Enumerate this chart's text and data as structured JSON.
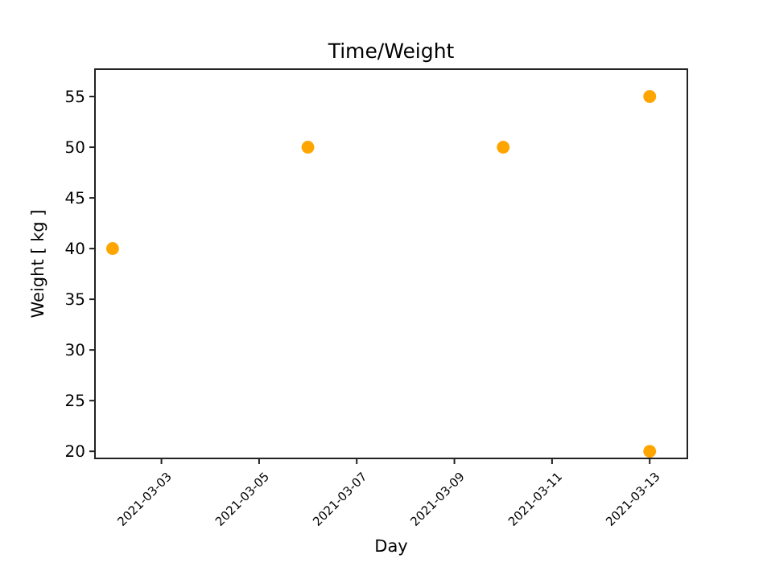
{
  "chart_data": {
    "type": "scatter",
    "title": "Time/Weight",
    "xlabel": "Day",
    "ylabel": "Weight [ kg ]",
    "x": [
      "2021-03-02",
      "2021-03-06",
      "2021-03-10",
      "2021-03-13",
      "2021-03-13"
    ],
    "series": [
      {
        "color": "#ffa500",
        "values": [
          40,
          50,
          50,
          55,
          20
        ]
      }
    ],
    "xlim": [
      "2021-03-01T15:20",
      "2021-03-13T18:30"
    ],
    "xticks": [
      "2021-03-03",
      "2021-03-05",
      "2021-03-07",
      "2021-03-09",
      "2021-03-11",
      "2021-03-13"
    ],
    "ylim": [
      19.3,
      57.7
    ],
    "yticks": [
      20,
      25,
      30,
      35,
      40,
      45,
      50,
      55
    ],
    "marker": "circle"
  }
}
